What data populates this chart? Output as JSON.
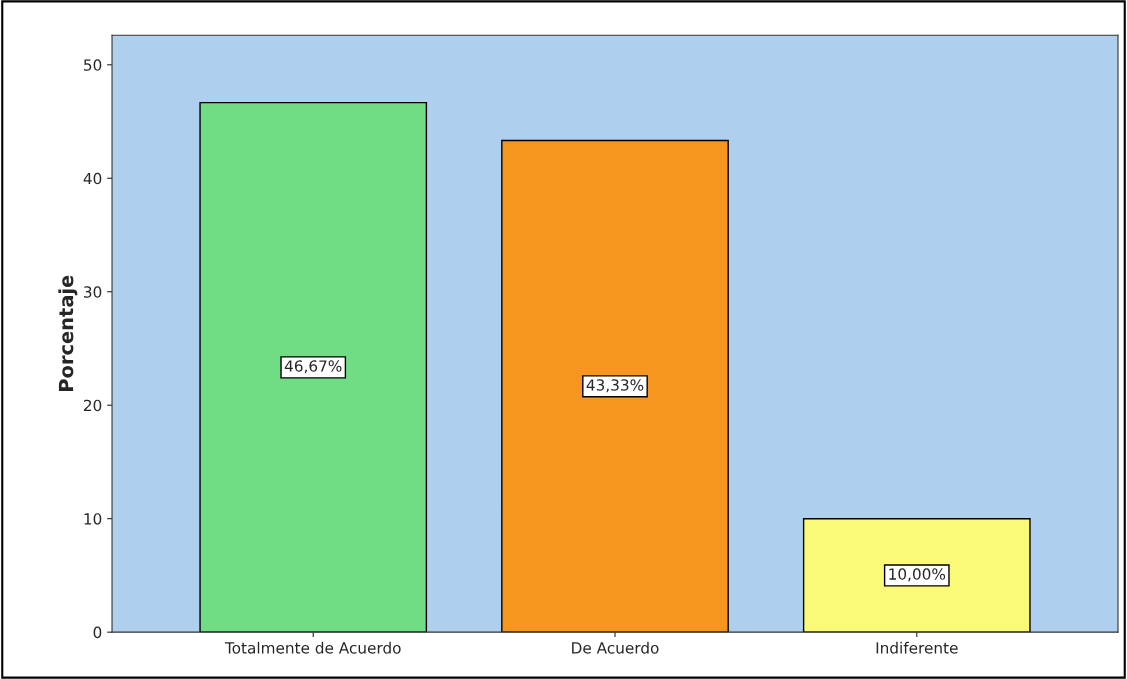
{
  "chart_data": {
    "type": "bar",
    "ylabel": "Porcentaje",
    "categories": [
      "Totalmente de Acuerdo",
      "De Acuerdo",
      "Indiferente"
    ],
    "values": [
      46.67,
      43.33,
      10.0
    ],
    "colors": [
      "#70dc84",
      "#f7961e",
      "#fafa78"
    ],
    "value_labels": [
      "46,67%",
      "43,33%",
      "10,00%"
    ],
    "ylim": [
      0,
      52.6
    ],
    "yticks": [
      0,
      10,
      20,
      30,
      40,
      50
    ],
    "grid": false,
    "legend": false
  }
}
